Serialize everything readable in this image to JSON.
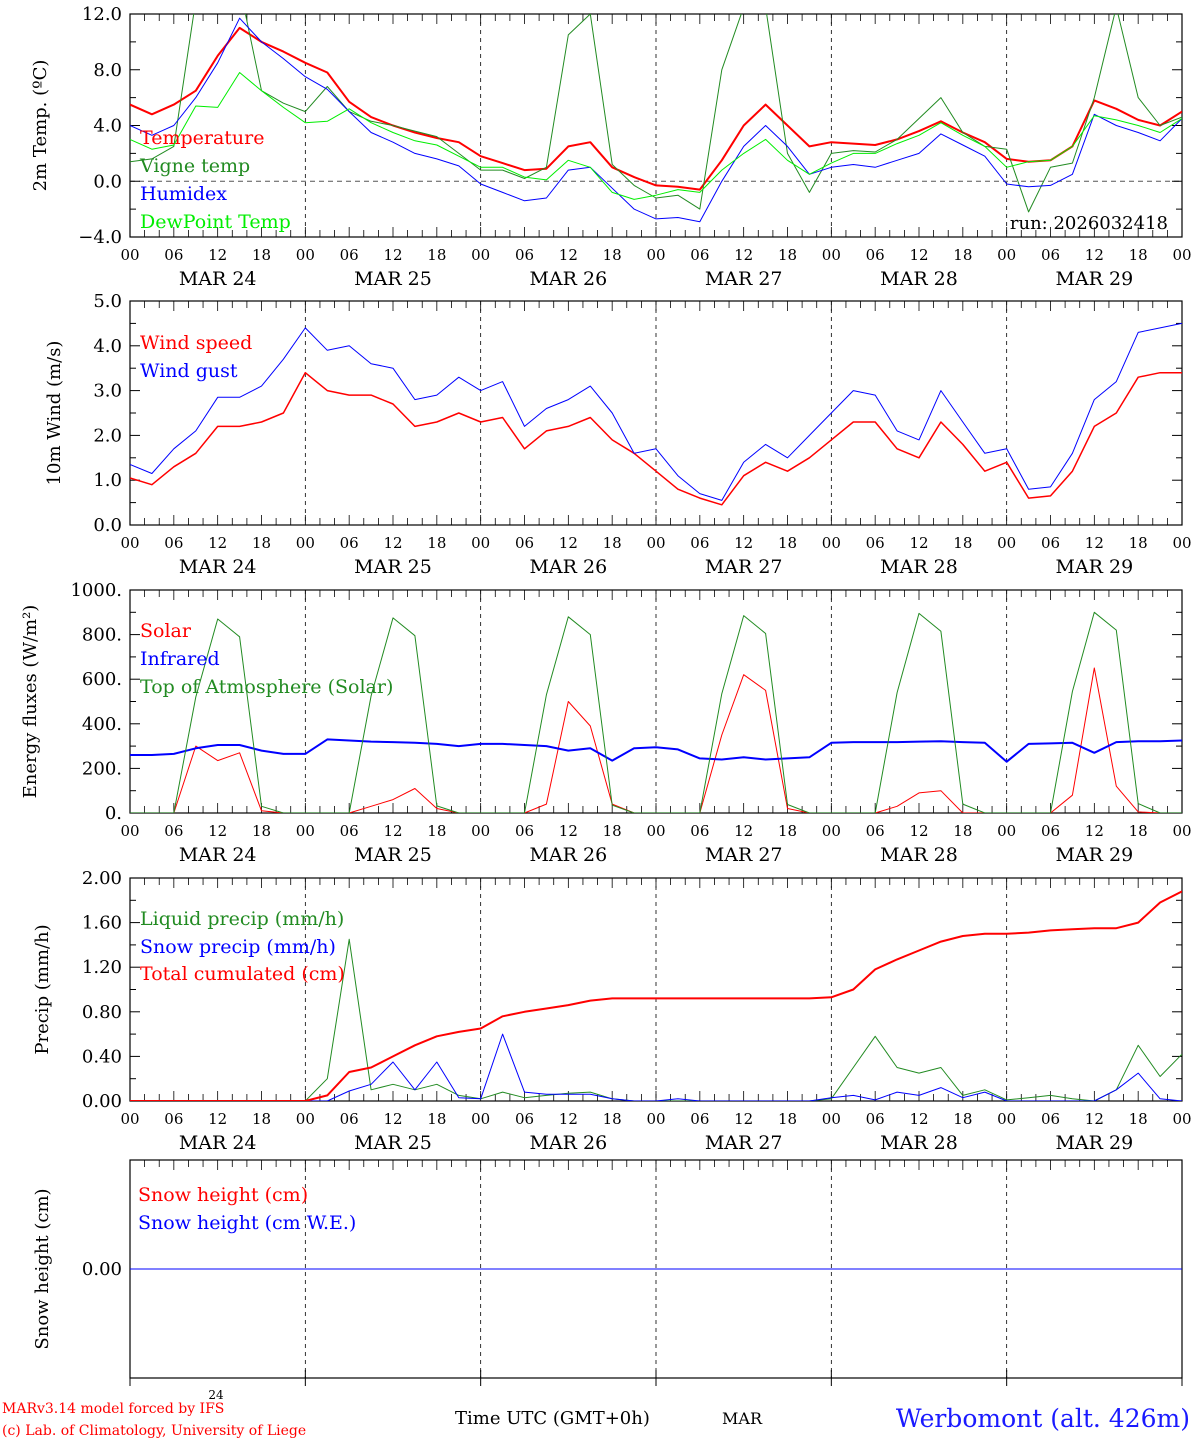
{
  "hours": [
    0,
    3,
    6,
    9,
    12,
    15,
    18,
    21,
    24,
    27,
    30,
    33,
    36,
    39,
    42,
    45,
    48,
    51,
    54,
    57,
    60,
    63,
    66,
    69,
    72,
    75,
    78,
    81,
    84,
    87,
    90,
    93,
    96,
    99,
    102,
    105,
    108,
    111,
    114,
    117,
    120,
    123,
    126,
    129,
    132,
    135,
    138,
    141,
    144
  ],
  "x_tick_labels": [
    "00",
    "06",
    "12",
    "18",
    "00",
    "06",
    "12",
    "18",
    "00",
    "06",
    "12",
    "18",
    "00",
    "06",
    "12",
    "18",
    "00",
    "06",
    "12",
    "18",
    "00",
    "06",
    "12",
    "18",
    "00"
  ],
  "date_labels": [
    "MAR 24",
    "MAR 25",
    "MAR 26",
    "MAR 27",
    "MAR 28",
    "MAR 29"
  ],
  "run_label": "run: 2026032418",
  "footer": {
    "day_number": "24",
    "model_line": "MARv3.14 model forced by IFS",
    "credit_line": "(c) Lab. of Climatology, University of Liege",
    "time_axis_label": "Time UTC (GMT+0h)",
    "month_label": "MAR",
    "station": "Werbomont (alt. 426m)"
  },
  "chart_data": [
    {
      "type": "line",
      "ylabel": "2m Temp. (ºC)",
      "ylim": [
        -4,
        12
      ],
      "yticks": [
        {
          "v": 12,
          "label": "12.0"
        },
        {
          "v": 8,
          "label": "8.0"
        },
        {
          "v": 4,
          "label": "4.0"
        },
        {
          "v": 0,
          "label": "0.0"
        },
        {
          "v": -4,
          "label": "−4.0"
        }
      ],
      "zero_line": true,
      "series": [
        {
          "name": "Temperature",
          "color": "#ff0000",
          "width": 2,
          "values": [
            5.5,
            4.8,
            5.5,
            6.5,
            9.0,
            11.0,
            10.0,
            9.3,
            8.5,
            7.8,
            5.7,
            4.6,
            4.0,
            3.5,
            3.1,
            2.8,
            1.8,
            1.3,
            0.8,
            0.9,
            2.5,
            2.8,
            1.0,
            0.3,
            -0.3,
            -0.4,
            -0.6,
            1.5,
            4.0,
            5.5,
            4.0,
            2.5,
            2.8,
            2.7,
            2.6,
            3.0,
            3.6,
            4.3,
            3.5,
            2.8,
            1.6,
            1.4,
            1.5,
            2.5,
            5.8,
            5.2,
            4.4,
            4.0,
            5.0
          ]
        },
        {
          "name": "Vigne temp",
          "color": "#228b22",
          "width": 1,
          "values": [
            1.4,
            1.6,
            2.5,
            13.0,
            14.0,
            14.0,
            6.5,
            5.6,
            5.0,
            6.8,
            5.0,
            4.3,
            4.0,
            3.6,
            3.2,
            2.0,
            0.8,
            0.8,
            0.2,
            1.0,
            10.5,
            12.0,
            1.2,
            -0.3,
            -1.2,
            -1.0,
            -2.0,
            8.0,
            12.5,
            12.5,
            2.0,
            -0.8,
            2.0,
            2.2,
            2.1,
            3.0,
            4.5,
            6.0,
            3.5,
            2.5,
            2.3,
            -2.2,
            1.0,
            1.3,
            6.0,
            12.5,
            6.0,
            4.0,
            4.6
          ]
        },
        {
          "name": "Humidex",
          "color": "#0000ff",
          "width": 1,
          "values": [
            4.0,
            3.3,
            4.0,
            6.0,
            8.5,
            11.7,
            10.0,
            8.8,
            7.5,
            6.6,
            5.0,
            3.5,
            2.8,
            2.0,
            1.6,
            1.1,
            -0.2,
            -0.8,
            -1.4,
            -1.2,
            0.8,
            1.0,
            -0.5,
            -2.0,
            -2.7,
            -2.6,
            -2.9,
            0.0,
            2.5,
            4.0,
            2.5,
            0.5,
            1.0,
            1.2,
            1.0,
            1.5,
            2.0,
            3.4,
            2.6,
            1.8,
            -0.2,
            -0.4,
            -0.3,
            0.5,
            4.8,
            4.0,
            3.5,
            2.9,
            4.5
          ]
        },
        {
          "name": "DewPoint Temp",
          "color": "#00ee00",
          "width": 1,
          "values": [
            3.0,
            2.3,
            2.6,
            5.4,
            5.3,
            7.8,
            6.5,
            5.3,
            4.2,
            4.3,
            5.2,
            4.2,
            3.5,
            2.9,
            2.6,
            1.8,
            1.0,
            1.0,
            0.3,
            0.1,
            1.5,
            1.0,
            -0.8,
            -1.3,
            -1.0,
            -0.6,
            -0.8,
            0.8,
            2.0,
            3.0,
            1.5,
            0.5,
            1.3,
            2.0,
            2.0,
            2.7,
            3.3,
            4.2,
            3.3,
            2.5,
            1.0,
            1.4,
            1.5,
            2.5,
            4.7,
            4.4,
            4.0,
            3.5,
            4.5
          ]
        }
      ]
    },
    {
      "type": "line",
      "ylabel": "10m Wind (m/s)",
      "ylim": [
        0,
        5
      ],
      "yticks": [
        {
          "v": 5,
          "label": "5.0"
        },
        {
          "v": 4,
          "label": "4.0"
        },
        {
          "v": 3,
          "label": "3.0"
        },
        {
          "v": 2,
          "label": "2.0"
        },
        {
          "v": 1,
          "label": "1.0"
        },
        {
          "v": 0,
          "label": "0.0"
        }
      ],
      "series": [
        {
          "name": "Wind speed",
          "color": "#ff0000",
          "width": 1.5,
          "values": [
            1.05,
            0.9,
            1.3,
            1.6,
            2.2,
            2.2,
            2.3,
            2.5,
            3.4,
            3.0,
            2.9,
            2.9,
            2.7,
            2.2,
            2.3,
            2.5,
            2.3,
            2.4,
            1.7,
            2.1,
            2.2,
            2.4,
            1.9,
            1.6,
            1.2,
            0.8,
            0.6,
            0.45,
            1.1,
            1.4,
            1.2,
            1.5,
            1.9,
            2.3,
            2.3,
            1.7,
            1.5,
            2.3,
            1.8,
            1.2,
            1.4,
            0.6,
            0.65,
            1.2,
            2.2,
            2.5,
            3.3,
            3.4,
            3.4
          ]
        },
        {
          "name": "Wind gust",
          "color": "#0000ff",
          "width": 1,
          "values": [
            1.35,
            1.15,
            1.7,
            2.1,
            2.85,
            2.85,
            3.1,
            3.7,
            4.4,
            3.9,
            4.0,
            3.6,
            3.5,
            2.8,
            2.9,
            3.3,
            3.0,
            3.2,
            2.2,
            2.6,
            2.8,
            3.1,
            2.5,
            1.6,
            1.7,
            1.1,
            0.7,
            0.55,
            1.4,
            1.8,
            1.5,
            2.0,
            2.5,
            3.0,
            2.9,
            2.1,
            1.9,
            3.0,
            2.3,
            1.6,
            1.7,
            0.8,
            0.85,
            1.6,
            2.8,
            3.2,
            4.3,
            4.4,
            4.5
          ]
        }
      ]
    },
    {
      "type": "line",
      "ylabel": "Energy fluxes (W/m²)",
      "ylim": [
        0,
        1000
      ],
      "yticks": [
        {
          "v": 1000,
          "label": "1000."
        },
        {
          "v": 800,
          "label": "800."
        },
        {
          "v": 600,
          "label": "600."
        },
        {
          "v": 400,
          "label": "400."
        },
        {
          "v": 200,
          "label": "200."
        },
        {
          "v": 0,
          "label": "0."
        }
      ],
      "series": [
        {
          "name": "Solar",
          "color": "#ff0000",
          "width": 1,
          "values": [
            0,
            0,
            0,
            300,
            235,
            270,
            10,
            0,
            0,
            0,
            0,
            30,
            60,
            110,
            20,
            0,
            0,
            0,
            0,
            40,
            500,
            390,
            40,
            0,
            0,
            0,
            0,
            350,
            620,
            550,
            20,
            0,
            0,
            0,
            0,
            30,
            90,
            100,
            0,
            0,
            0,
            0,
            0,
            80,
            650,
            120,
            5,
            0,
            0
          ]
        },
        {
          "name": "Infrared",
          "color": "#0000ff",
          "width": 2,
          "values": [
            260,
            260,
            265,
            290,
            305,
            305,
            280,
            265,
            265,
            330,
            325,
            320,
            318,
            315,
            310,
            300,
            310,
            310,
            305,
            300,
            280,
            290,
            235,
            290,
            295,
            285,
            245,
            240,
            250,
            240,
            245,
            250,
            315,
            318,
            318,
            318,
            320,
            322,
            318,
            315,
            230,
            310,
            312,
            315,
            270,
            318,
            322,
            322,
            325
          ]
        },
        {
          "name": "Top of Atmosphere (Solar)",
          "color": "#228b22",
          "width": 1,
          "values": [
            0,
            0,
            0,
            520,
            870,
            790,
            30,
            0,
            0,
            0,
            0,
            525,
            875,
            795,
            32,
            0,
            0,
            0,
            0,
            530,
            880,
            800,
            35,
            0,
            0,
            0,
            0,
            535,
            885,
            805,
            38,
            0,
            0,
            0,
            0,
            540,
            895,
            815,
            40,
            0,
            0,
            0,
            0,
            545,
            900,
            820,
            42,
            0,
            0
          ]
        }
      ]
    },
    {
      "type": "line",
      "ylabel": "Precip (mm/h)",
      "ylim": [
        0,
        2
      ],
      "yticks": [
        {
          "v": 2,
          "label": "2.00"
        },
        {
          "v": 1.6,
          "label": "1.60"
        },
        {
          "v": 1.2,
          "label": "1.20"
        },
        {
          "v": 0.8,
          "label": "0.80"
        },
        {
          "v": 0.4,
          "label": "0.40"
        },
        {
          "v": 0,
          "label": "0.00"
        }
      ],
      "series": [
        {
          "name": "Liquid precip (mm/h)",
          "color": "#228b22",
          "width": 1,
          "values": [
            0,
            0,
            0,
            0,
            0,
            0,
            0,
            0,
            0,
            0.2,
            1.45,
            0.1,
            0.15,
            0.1,
            0.15,
            0.05,
            0.02,
            0.08,
            0.03,
            0.05,
            0.07,
            0.08,
            0.02,
            0,
            0,
            0,
            0,
            0,
            0,
            0,
            0,
            0,
            0.02,
            0.3,
            0.58,
            0.3,
            0.25,
            0.3,
            0.05,
            0.1,
            0.01,
            0.03,
            0.05,
            0.02,
            0,
            0.1,
            0.5,
            0.22,
            0.42
          ]
        },
        {
          "name": "Snow precip (mm/h)",
          "color": "#0000ff",
          "width": 1,
          "values": [
            0,
            0,
            0,
            0,
            0,
            0,
            0,
            0,
            0,
            0,
            0.09,
            0.15,
            0.35,
            0.1,
            0.35,
            0.03,
            0.02,
            0.6,
            0.08,
            0.06,
            0.06,
            0.06,
            0.02,
            0,
            0,
            0.02,
            0,
            0,
            0,
            0,
            0,
            0,
            0.03,
            0.05,
            0.01,
            0.08,
            0.05,
            0.12,
            0.03,
            0.08,
            0,
            0,
            0,
            0,
            0,
            0.1,
            0.25,
            0.02,
            0
          ]
        },
        {
          "name": "Total cumulated (cm)",
          "color": "#ff0000",
          "width": 2,
          "values": [
            0,
            0,
            0,
            0,
            0,
            0,
            0,
            0,
            0,
            0.05,
            0.26,
            0.3,
            0.4,
            0.5,
            0.58,
            0.62,
            0.65,
            0.76,
            0.8,
            0.83,
            0.86,
            0.9,
            0.92,
            0.92,
            0.92,
            0.92,
            0.92,
            0.92,
            0.92,
            0.92,
            0.92,
            0.92,
            0.93,
            1.0,
            1.18,
            1.27,
            1.35,
            1.43,
            1.48,
            1.5,
            1.5,
            1.51,
            1.53,
            1.54,
            1.55,
            1.55,
            1.6,
            1.78,
            1.88
          ]
        }
      ]
    },
    {
      "type": "line",
      "ylabel": "Snow height (cm)",
      "ylim": [
        -1,
        1
      ],
      "yticks": [
        {
          "v": 0,
          "label": "0.00"
        }
      ],
      "series": [
        {
          "name": "Snow height (cm)",
          "color": "#ff0000",
          "width": 1,
          "values": [
            0,
            0,
            0,
            0,
            0,
            0,
            0,
            0,
            0,
            0,
            0,
            0,
            0,
            0,
            0,
            0,
            0,
            0,
            0,
            0,
            0,
            0,
            0,
            0,
            0,
            0,
            0,
            0,
            0,
            0,
            0,
            0,
            0,
            0,
            0,
            0,
            0,
            0,
            0,
            0,
            0,
            0,
            0,
            0,
            0,
            0,
            0,
            0,
            0
          ]
        },
        {
          "name": "Snow height (cm W.E.)",
          "color": "#0000ff",
          "width": 1,
          "values": [
            0,
            0,
            0,
            0,
            0,
            0,
            0,
            0,
            0,
            0,
            0,
            0,
            0,
            0,
            0,
            0,
            0,
            0,
            0,
            0,
            0,
            0,
            0,
            0,
            0,
            0,
            0,
            0,
            0,
            0,
            0,
            0,
            0,
            0,
            0,
            0,
            0,
            0,
            0,
            0,
            0,
            0,
            0,
            0,
            0,
            0,
            0,
            0,
            0
          ]
        }
      ]
    }
  ]
}
